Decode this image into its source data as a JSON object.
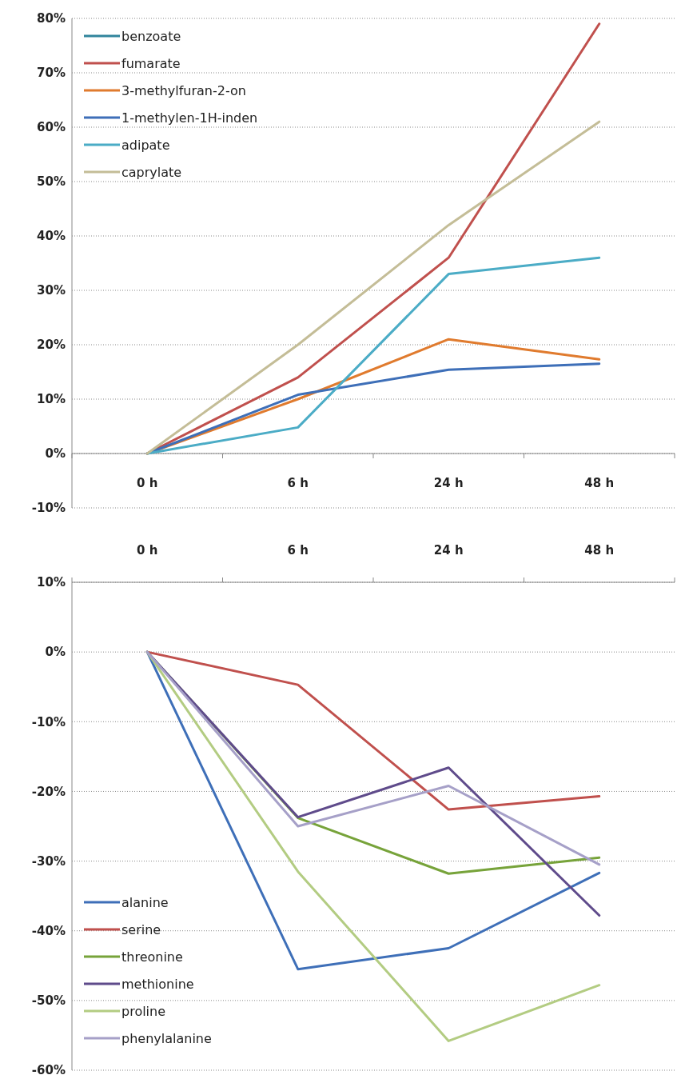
{
  "chart_data": [
    {
      "type": "line",
      "categories": [
        "0 h",
        "6 h",
        "24 h",
        "48 h"
      ],
      "ylim": [
        -10,
        80
      ],
      "yticks": [
        {
          "value": -10,
          "label": "-10%"
        },
        {
          "value": 0,
          "label": "0%"
        },
        {
          "value": 10,
          "label": "10%"
        },
        {
          "value": 20,
          "label": "20%"
        },
        {
          "value": 30,
          "label": "30%"
        },
        {
          "value": 40,
          "label": "40%"
        },
        {
          "value": 50,
          "label": "50%"
        },
        {
          "value": 60,
          "label": "60%"
        },
        {
          "value": 70,
          "label": "70%"
        },
        {
          "value": 80,
          "label": "80%"
        }
      ],
      "grid": "y",
      "legend": "top left",
      "line_style": "solid",
      "series": [
        {
          "name": "benzoate",
          "color": "#31859c",
          "values": [
            null,
            null,
            null,
            null
          ]
        },
        {
          "name": "fumarate",
          "color": "#c0504d",
          "values": [
            0,
            14,
            36,
            79
          ]
        },
        {
          "name": "3-methylfuran-2-on",
          "color": "#e07b2e",
          "values": [
            0,
            10,
            21,
            17.3
          ]
        },
        {
          "name": "1-methylen-1H-inden",
          "color": "#3e6fb8",
          "values": [
            0,
            10.8,
            15.4,
            16.5
          ]
        },
        {
          "name": "adipate",
          "color": "#4bacc6",
          "values": [
            0,
            4.8,
            33,
            36
          ]
        },
        {
          "name": "caprylate",
          "color": "#c4bd97",
          "values": [
            0,
            20,
            42,
            61
          ]
        }
      ]
    },
    {
      "type": "line",
      "categories": [
        "0 h",
        "6 h",
        "24 h",
        "48 h"
      ],
      "ylim": [
        -60,
        10
      ],
      "yticks": [
        {
          "value": -60,
          "label": "-60%"
        },
        {
          "value": -50,
          "label": "-50%"
        },
        {
          "value": -40,
          "label": "-40%"
        },
        {
          "value": -30,
          "label": "-30%"
        },
        {
          "value": -20,
          "label": "-20%"
        },
        {
          "value": -10,
          "label": "-10%"
        },
        {
          "value": 0,
          "label": "0%"
        },
        {
          "value": 10,
          "label": "10%"
        }
      ],
      "grid": "y",
      "legend": "bottom left",
      "line_style": "solid",
      "series": [
        {
          "name": "alanine",
          "color": "#3e6fb8",
          "values": [
            0,
            -45.5,
            -42.5,
            -31.7
          ]
        },
        {
          "name": "serine",
          "color": "#c0504d",
          "values": [
            0,
            -4.7,
            -22.6,
            -20.7
          ]
        },
        {
          "name": "threonine",
          "color": "#77a33a",
          "values": [
            0,
            -23.8,
            -31.8,
            -29.5
          ]
        },
        {
          "name": "methionine",
          "color": "#5f4b8b",
          "values": [
            0,
            -23.7,
            -16.6,
            -37.8
          ]
        },
        {
          "name": "proline",
          "color": "#b3cc82",
          "values": [
            0,
            -31.5,
            -55.8,
            -47.8
          ]
        },
        {
          "name": "phenylalanine",
          "color": "#a6a0c8",
          "values": [
            0,
            -25,
            -19.2,
            -30.5
          ]
        }
      ]
    }
  ]
}
